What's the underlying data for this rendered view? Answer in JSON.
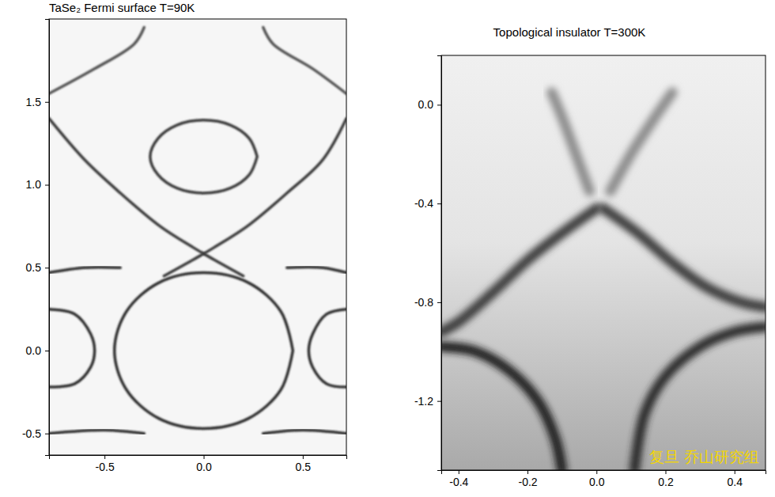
{
  "chart_data": [
    {
      "type": "line",
      "title": "TaSe₂ Fermi surface T=90K",
      "xlim": [
        -0.78,
        0.72
      ],
      "xticks": [
        -0.5,
        {
          "value": 0,
          "label": "0.0"
        },
        0.5
      ],
      "ylim": [
        -0.63,
        2.0
      ],
      "yticks": [
        -0.5,
        {
          "value": 0,
          "label": "0.0"
        },
        0.5,
        {
          "value": 1,
          "label": "1.0"
        },
        1.5
      ],
      "series": [
        {
          "color": "#2e2e2e",
          "x": [
            0.45,
            0.39,
            0.225,
            0,
            -0.225,
            -0.39,
            -0.45,
            -0.39,
            -0.225,
            0,
            0.225,
            0.39,
            0.45
          ],
          "values": [
            0,
            0.235,
            0.41,
            0.47,
            0.41,
            0.235,
            0,
            -0.235,
            -0.41,
            -0.47,
            -0.41,
            -0.235,
            0
          ]
        },
        {
          "color": "#3a3a3a",
          "x": [
            0.27,
            0.23,
            0.135,
            0,
            -0.135,
            -0.23,
            -0.27,
            -0.23,
            -0.135,
            0,
            0.135,
            0.23,
            0.27
          ],
          "values": [
            1.17,
            1.28,
            1.36,
            1.39,
            1.36,
            1.28,
            1.17,
            1.06,
            0.98,
            0.95,
            0.98,
            1.06,
            1.17
          ]
        },
        {
          "color": "#3a3a3a",
          "x": [
            -0.78,
            -0.6,
            -0.42,
            -0.22,
            -0.05,
            0.05,
            0.2
          ],
          "values": [
            1.4,
            1.15,
            0.95,
            0.75,
            0.62,
            0.55,
            0.45
          ]
        },
        {
          "color": "#3a3a3a",
          "x": [
            0.72,
            0.6,
            0.42,
            0.22,
            0.05,
            -0.05,
            -0.2
          ],
          "values": [
            1.4,
            1.15,
            0.95,
            0.75,
            0.62,
            0.55,
            0.45
          ]
        },
        {
          "color": "#555555",
          "x": [
            -0.78,
            -0.55,
            -0.35,
            -0.3
          ],
          "values": [
            1.55,
            1.7,
            1.85,
            1.95
          ]
        },
        {
          "color": "#555555",
          "x": [
            0.72,
            0.55,
            0.35,
            0.3
          ],
          "values": [
            1.55,
            1.7,
            1.85,
            1.95
          ]
        },
        {
          "color": "#2e2e2e",
          "x": [
            -0.78,
            -0.65,
            -0.57,
            -0.55,
            -0.57,
            -0.65,
            -0.78
          ],
          "values": [
            0.25,
            0.22,
            0.1,
            0,
            -0.1,
            -0.2,
            -0.22
          ]
        },
        {
          "color": "#2e2e2e",
          "x": [
            0.72,
            0.62,
            0.55,
            0.53,
            0.55,
            0.62,
            0.72
          ],
          "values": [
            0.25,
            0.22,
            0.1,
            0,
            -0.1,
            -0.2,
            -0.22
          ]
        },
        {
          "color": "#2e2e2e",
          "x": [
            -0.78,
            -0.6,
            -0.42
          ],
          "values": [
            0.47,
            0.5,
            0.5
          ]
        },
        {
          "color": "#2e2e2e",
          "x": [
            0.42,
            0.6,
            0.72
          ],
          "values": [
            0.5,
            0.5,
            0.47
          ]
        },
        {
          "color": "#2e2e2e",
          "x": [
            -0.78,
            -0.5,
            -0.3
          ],
          "values": [
            -0.5,
            -0.48,
            -0.5
          ]
        },
        {
          "color": "#2e2e2e",
          "x": [
            0.3,
            0.5,
            0.72
          ],
          "values": [
            -0.5,
            -0.48,
            -0.5
          ]
        }
      ]
    },
    {
      "type": "line",
      "title": "Topological insulator T=300K",
      "annotation": "复旦 乔山研究组",
      "xlim": [
        -0.45,
        0.49
      ],
      "xticks": [
        -0.4,
        -0.2,
        {
          "value": 0,
          "label": "0.0"
        },
        0.2,
        0.4
      ],
      "ylim": [
        -1.48,
        0.2
      ],
      "yticks": [
        {
          "value": 0,
          "label": "0.0"
        },
        -0.4,
        -0.8,
        -1.2
      ],
      "series": [
        {
          "color": "#8c8c8c",
          "x": [
            -0.02,
            -0.06,
            -0.1,
            -0.13
          ],
          "values": [
            -0.35,
            -0.2,
            -0.05,
            0.05
          ]
        },
        {
          "color": "#8c8c8c",
          "x": [
            0.04,
            0.1,
            0.17,
            0.22
          ],
          "values": [
            -0.35,
            -0.2,
            -0.05,
            0.05
          ]
        },
        {
          "color": "#3a3a3a",
          "x": [
            0.0,
            -0.1,
            -0.2,
            -0.3,
            -0.4,
            -0.45
          ],
          "values": [
            -0.42,
            -0.52,
            -0.63,
            -0.76,
            -0.88,
            -0.92
          ]
        },
        {
          "color": "#3a3a3a",
          "x": [
            0.02,
            0.12,
            0.22,
            0.32,
            0.42,
            0.49
          ],
          "values": [
            -0.42,
            -0.52,
            -0.64,
            -0.74,
            -0.8,
            -0.82
          ]
        },
        {
          "color": "#1e1e1e",
          "x": [
            -0.45,
            -0.35,
            -0.25,
            -0.17,
            -0.12,
            -0.1
          ],
          "values": [
            -0.98,
            -1.0,
            -1.08,
            -1.2,
            -1.35,
            -1.48
          ]
        },
        {
          "color": "#2a2a2a",
          "x": [
            0.49,
            0.4,
            0.3,
            0.2,
            0.14,
            0.11
          ],
          "values": [
            -0.9,
            -0.92,
            -0.98,
            -1.1,
            -1.25,
            -1.48
          ]
        }
      ]
    }
  ]
}
